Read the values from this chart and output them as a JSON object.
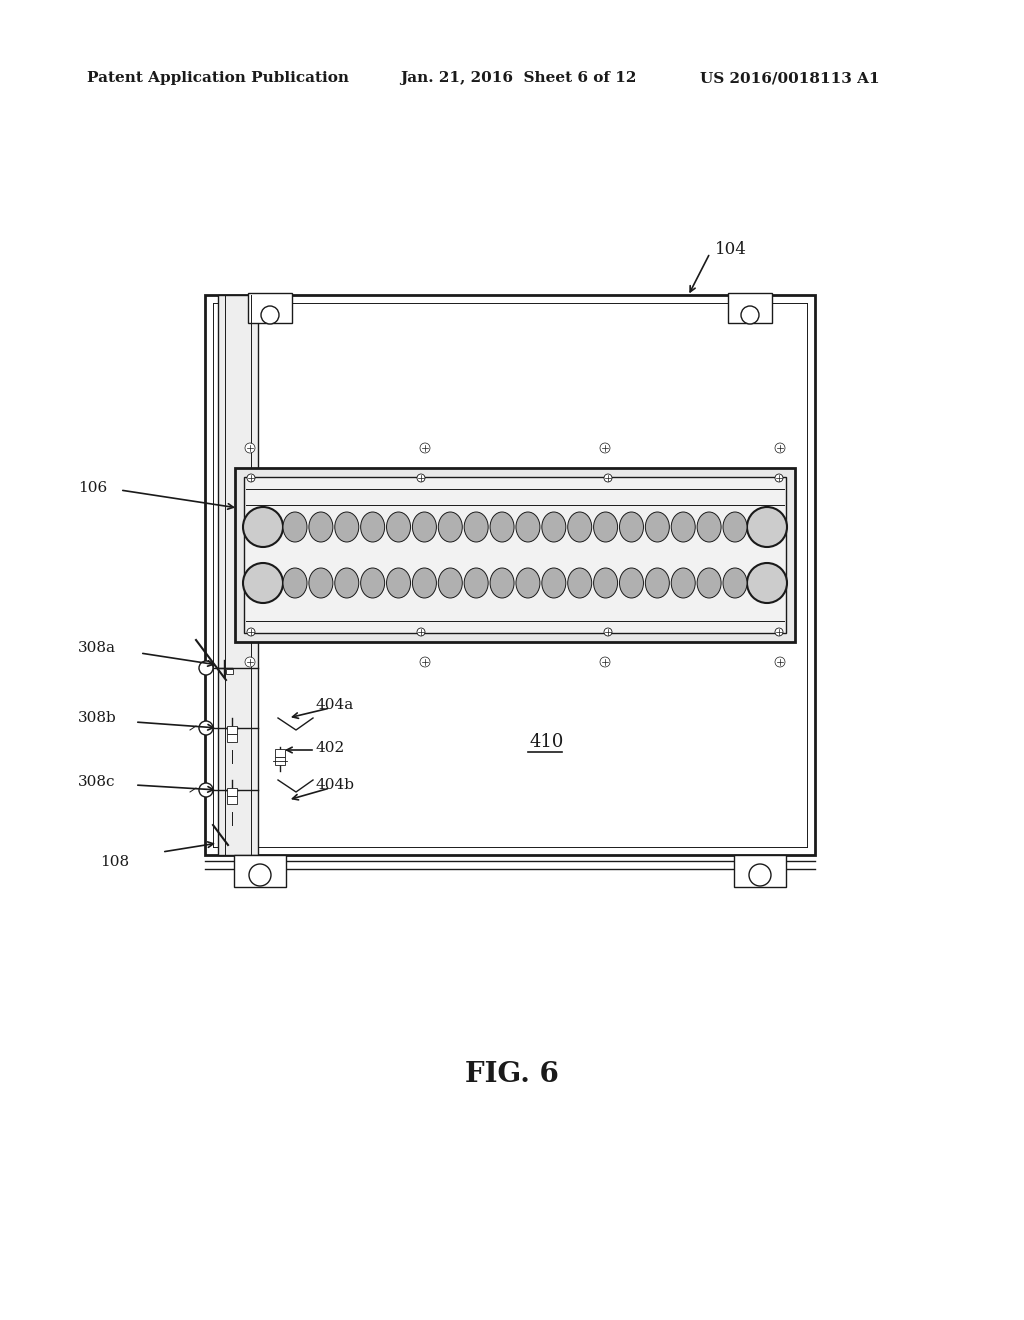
{
  "bg_color": "#ffffff",
  "header_left": "Patent Application Publication",
  "header_mid": "Jan. 21, 2016  Sheet 6 of 12",
  "header_right": "US 2016/0018113 A1",
  "fig_label": "FIG. 6",
  "label_104": "104",
  "label_106": "106",
  "label_108": "108",
  "label_308a": "308a",
  "label_308b": "308b",
  "label_308c": "308c",
  "label_402": "402",
  "label_404a": "404a",
  "label_404b": "404b",
  "label_410": "410"
}
